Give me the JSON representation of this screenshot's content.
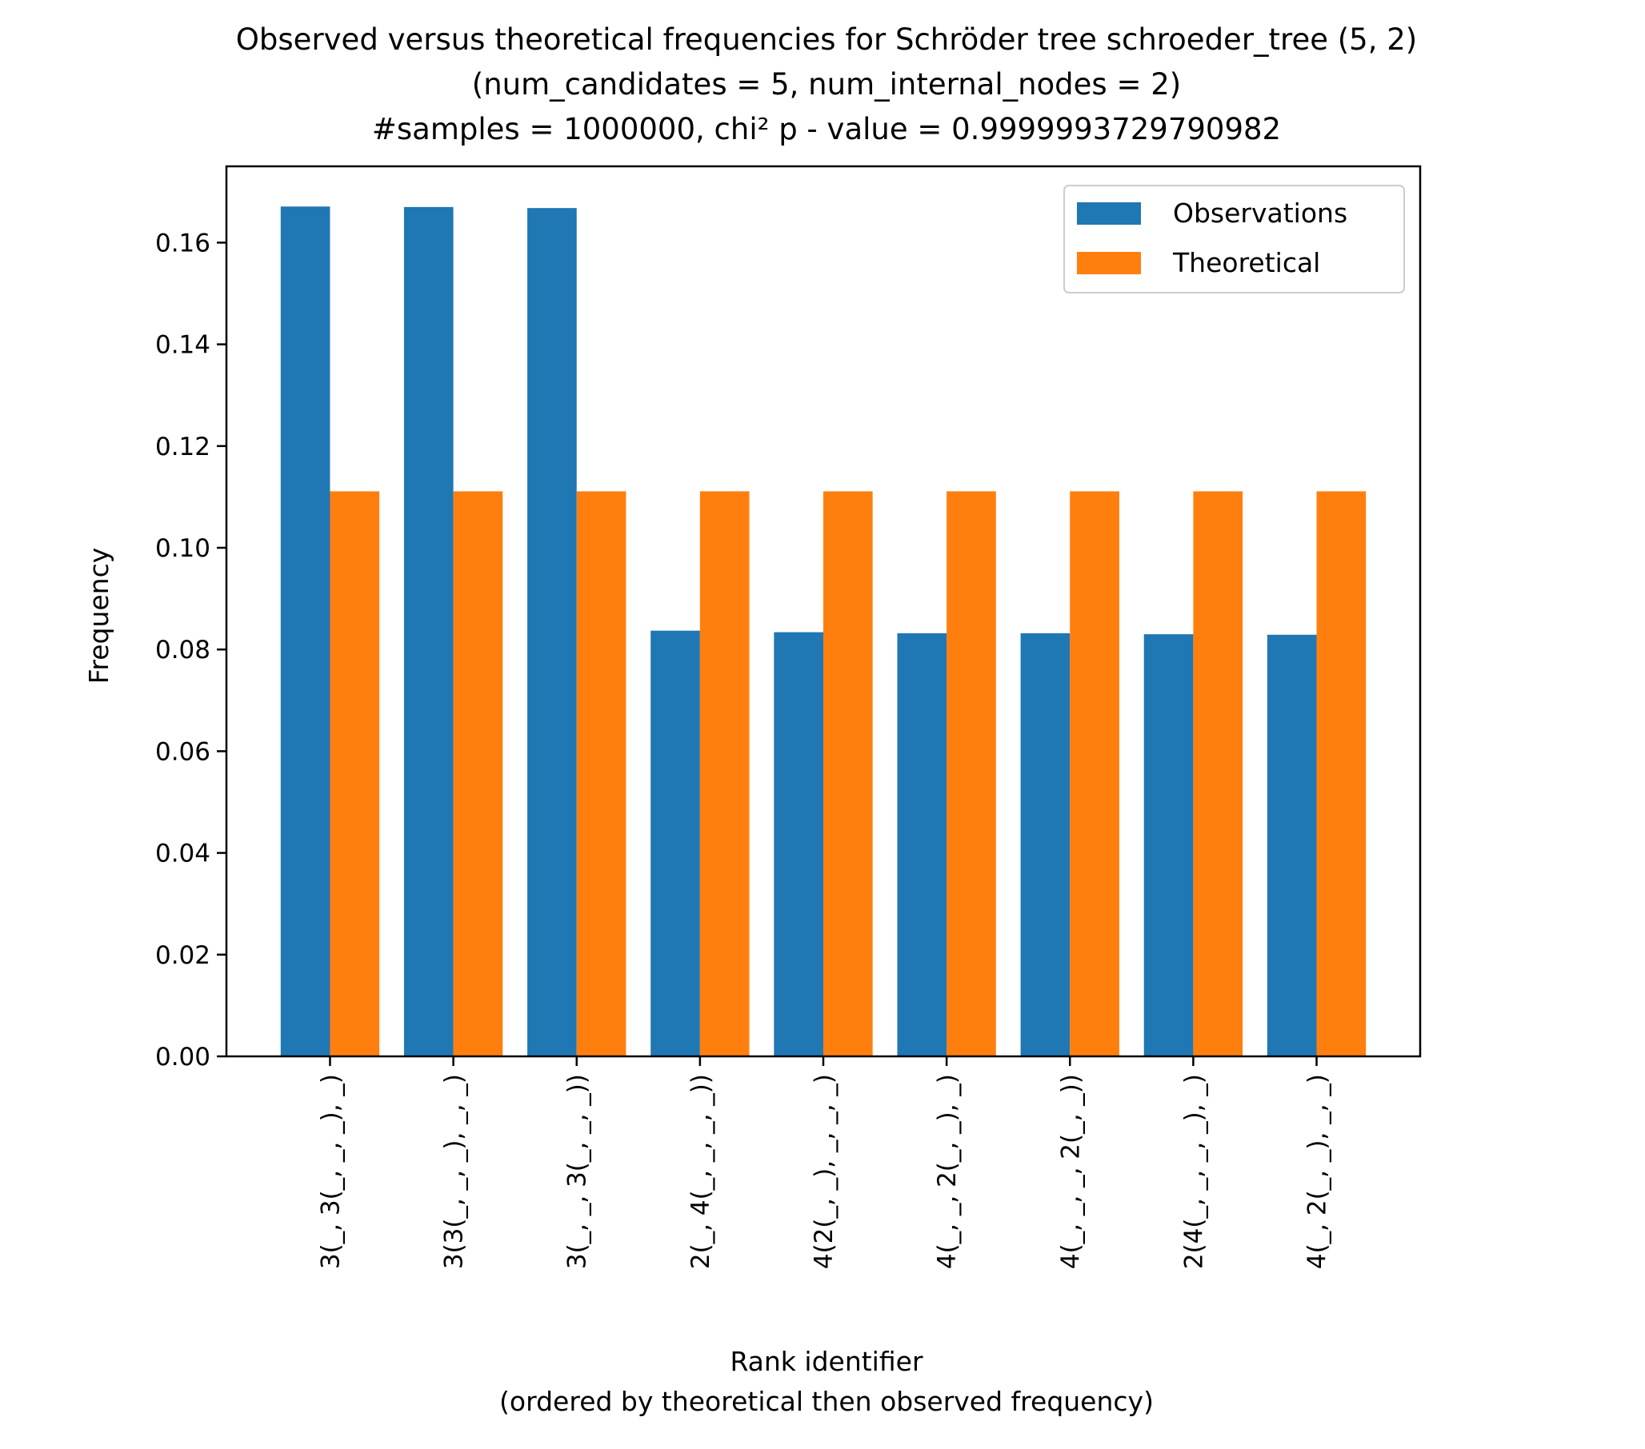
{
  "chart_data": {
    "type": "bar",
    "title_lines": [
      "Observed versus theoretical frequencies for Schröder tree schroeder_tree (5, 2)",
      "(num_candidates = 5, num_internal_nodes = 2)",
      "#samples = 1000000, chi² p - value = 0.9999993729790982"
    ],
    "xlabel_lines": [
      "Rank identifier",
      "(ordered by theoretical then observed frequency)"
    ],
    "ylabel": "Frequency",
    "categories": [
      "3(_, 3(_, _, _), _)",
      "3(3(_, _, _), _, _)",
      "3(_, _, 3(_, _, _))",
      "2(_, 4(_, _, _, _))",
      "4(2(_, _), _, _, _)",
      "4(_, _, 2(_, _), _)",
      "4(_, _, _, 2(_, _))",
      "2(4(_, _, _, _), _)",
      "4(_, 2(_, _), _, _)"
    ],
    "series": [
      {
        "name": "Observations",
        "color": "#1f77b4",
        "values": [
          0.1671,
          0.167,
          0.1668,
          0.0837,
          0.0834,
          0.0832,
          0.0832,
          0.083,
          0.0829
        ]
      },
      {
        "name": "Theoretical",
        "color": "#ff7f0e",
        "values": [
          0.1111,
          0.1111,
          0.1111,
          0.1111,
          0.1111,
          0.1111,
          0.1111,
          0.1111,
          0.1111
        ]
      }
    ],
    "ylim": [
      0,
      0.175
    ],
    "yticks": [
      "0.00",
      "0.02",
      "0.04",
      "0.06",
      "0.08",
      "0.10",
      "0.12",
      "0.14",
      "0.16"
    ],
    "grid": false,
    "legend_position": "top-right"
  }
}
